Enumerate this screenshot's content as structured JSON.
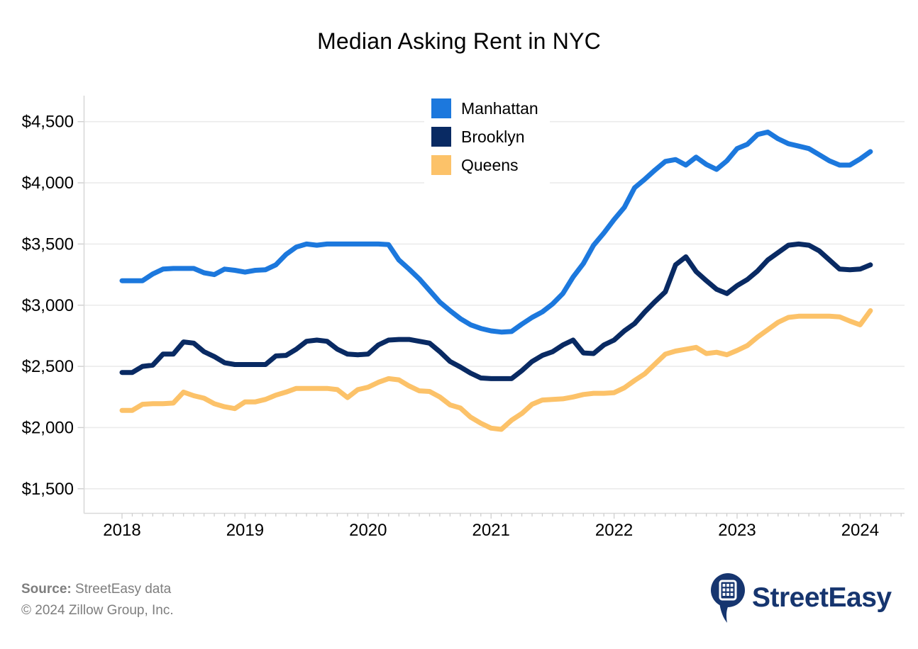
{
  "chart_data": {
    "type": "line",
    "title": "Median Asking Rent in NYC",
    "xlabel": "",
    "ylabel": "",
    "currency": "USD",
    "frequency": "monthly",
    "grid": "horizontal-only",
    "legend_position": "upper-center-inside",
    "ylim": [
      1300,
      4650
    ],
    "colors": {
      "grid": "#ebebeb",
      "axis": "#d9d9d9",
      "tick": "#cfcfcf",
      "tick_label": "#000000"
    },
    "yticks": [
      {
        "label": "$4,500",
        "value": 4500
      },
      {
        "label": "$4,000",
        "value": 4000
      },
      {
        "label": "$3,500",
        "value": 3500
      },
      {
        "label": "$3,000",
        "value": 3000
      },
      {
        "label": "$2,500",
        "value": 2500
      },
      {
        "label": "$2,000",
        "value": 2000
      },
      {
        "label": "$1,500",
        "value": 1500
      }
    ],
    "xticks": [
      {
        "label": "2018"
      },
      {
        "label": "2019"
      },
      {
        "label": "2020"
      },
      {
        "label": "2021"
      },
      {
        "label": "2022"
      },
      {
        "label": "2023"
      },
      {
        "label": "2024"
      }
    ],
    "months": [
      "2018-01",
      "2018-02",
      "2018-03",
      "2018-04",
      "2018-05",
      "2018-06",
      "2018-07",
      "2018-08",
      "2018-09",
      "2018-10",
      "2018-11",
      "2018-12",
      "2019-01",
      "2019-02",
      "2019-03",
      "2019-04",
      "2019-05",
      "2019-06",
      "2019-07",
      "2019-08",
      "2019-09",
      "2019-10",
      "2019-11",
      "2019-12",
      "2020-01",
      "2020-02",
      "2020-03",
      "2020-04",
      "2020-05",
      "2020-06",
      "2020-07",
      "2020-08",
      "2020-09",
      "2020-10",
      "2020-11",
      "2020-12",
      "2021-01",
      "2021-02",
      "2021-03",
      "2021-04",
      "2021-05",
      "2021-06",
      "2021-07",
      "2021-08",
      "2021-09",
      "2021-10",
      "2021-11",
      "2021-12",
      "2022-01",
      "2022-02",
      "2022-03",
      "2022-04",
      "2022-05",
      "2022-06",
      "2022-07",
      "2022-08",
      "2022-09",
      "2022-10",
      "2022-11",
      "2022-12",
      "2023-01",
      "2023-02",
      "2023-03",
      "2023-04",
      "2023-05",
      "2023-06",
      "2023-07",
      "2023-08",
      "2023-09",
      "2023-10",
      "2023-11",
      "2023-12",
      "2024-01",
      "2024-02"
    ],
    "series": [
      {
        "name": "Manhattan",
        "color": "#1c78dd",
        "values": [
          3200,
          3200,
          3200,
          3255,
          3295,
          3300,
          3300,
          3300,
          3265,
          3250,
          3295,
          3285,
          3270,
          3285,
          3290,
          3330,
          3415,
          3475,
          3500,
          3490,
          3500,
          3500,
          3500,
          3500,
          3500,
          3500,
          3495,
          3370,
          3295,
          3215,
          3120,
          3025,
          2955,
          2890,
          2840,
          2810,
          2790,
          2780,
          2785,
          2845,
          2900,
          2945,
          3010,
          3095,
          3230,
          3340,
          3490,
          3590,
          3700,
          3800,
          3960,
          4030,
          4105,
          4175,
          4190,
          4145,
          4210,
          4150,
          4110,
          4180,
          4280,
          4315,
          4395,
          4415,
          4360,
          4320,
          4300,
          4280,
          4230,
          4180,
          4145,
          4145,
          4195,
          4255
        ]
      },
      {
        "name": "Brooklyn",
        "color": "#092a63",
        "values": [
          2450,
          2450,
          2500,
          2510,
          2600,
          2600,
          2700,
          2690,
          2620,
          2580,
          2530,
          2515,
          2515,
          2515,
          2515,
          2585,
          2590,
          2640,
          2705,
          2715,
          2705,
          2640,
          2600,
          2595,
          2600,
          2675,
          2715,
          2720,
          2720,
          2705,
          2690,
          2620,
          2540,
          2495,
          2445,
          2405,
          2400,
          2400,
          2400,
          2465,
          2540,
          2590,
          2620,
          2675,
          2715,
          2610,
          2605,
          2675,
          2715,
          2790,
          2850,
          2945,
          3030,
          3110,
          3330,
          3395,
          3275,
          3200,
          3130,
          3095,
          3160,
          3210,
          3280,
          3370,
          3430,
          3490,
          3500,
          3490,
          3445,
          3370,
          3295,
          3290,
          3295,
          3330
        ]
      },
      {
        "name": "Queens",
        "color": "#fcc269",
        "values": [
          2140,
          2140,
          2190,
          2195,
          2195,
          2200,
          2290,
          2260,
          2240,
          2195,
          2170,
          2155,
          2210,
          2210,
          2230,
          2265,
          2290,
          2320,
          2320,
          2320,
          2320,
          2310,
          2245,
          2310,
          2330,
          2370,
          2400,
          2390,
          2340,
          2300,
          2295,
          2250,
          2185,
          2160,
          2085,
          2035,
          1995,
          1985,
          2060,
          2115,
          2190,
          2225,
          2230,
          2235,
          2250,
          2270,
          2280,
          2280,
          2285,
          2325,
          2385,
          2440,
          2520,
          2600,
          2625,
          2640,
          2655,
          2605,
          2615,
          2595,
          2630,
          2670,
          2740,
          2800,
          2860,
          2900,
          2910,
          2910,
          2910,
          2910,
          2905,
          2870,
          2840,
          2955
        ]
      }
    ]
  },
  "footer": {
    "source_label": "Source:",
    "source_text": "StreetEasy data",
    "copyright": "© 2024 Zillow Group, Inc."
  },
  "logo": {
    "wordmark": "StreetEasy",
    "color": "#16356f"
  }
}
